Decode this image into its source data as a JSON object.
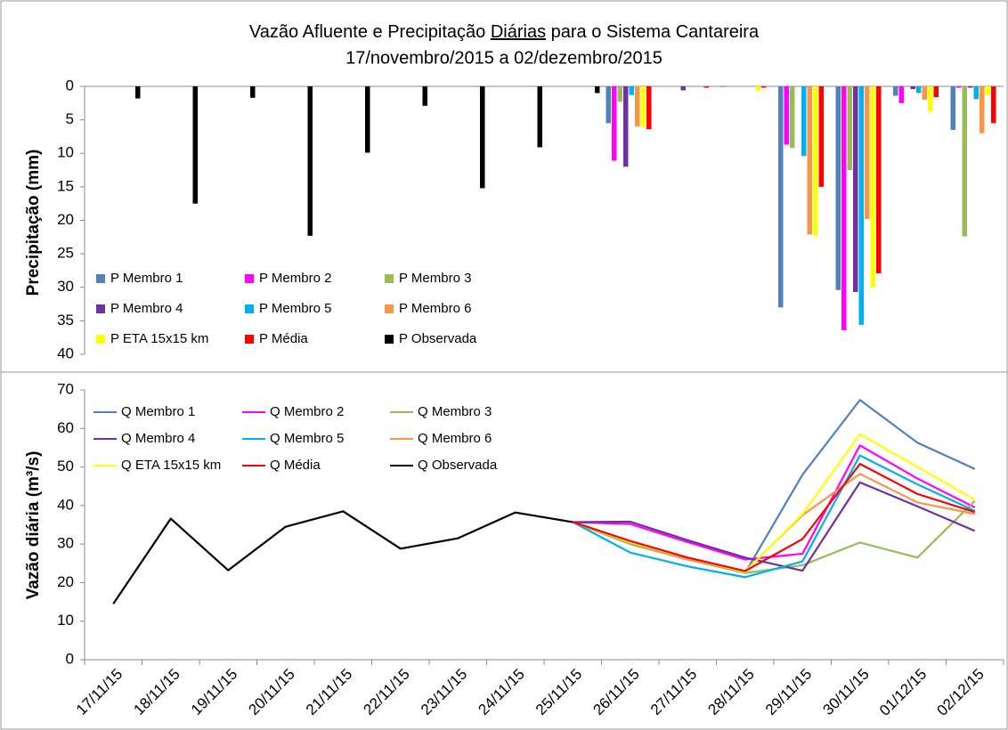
{
  "chart_data": [
    {
      "type": "bar",
      "title_parts": [
        "Vazão Afluente e Precipitação ",
        "Diárias",
        " para o Sistema Cantareira"
      ],
      "subtitle": "17/novembro/2015 a  02/dezembro/2015",
      "ylabel": "Precipitação (mm)",
      "y_inverted": true,
      "ylim": [
        0,
        40
      ],
      "yticks": [
        0,
        5,
        10,
        15,
        20,
        25,
        30,
        35,
        40
      ],
      "grid": false,
      "legend": "lower left",
      "series": [
        {
          "name": "P Membro 1",
          "color": "#4f81bd",
          "values": [
            null,
            null,
            null,
            null,
            null,
            null,
            null,
            null,
            null,
            5.5,
            0,
            0.1,
            33.0,
            30.4,
            1.4,
            6.5
          ]
        },
        {
          "name": "P Membro 2",
          "color": "#ff00ff",
          "values": [
            null,
            null,
            null,
            null,
            null,
            null,
            null,
            null,
            null,
            11.1,
            0,
            0,
            8.7,
            36.4,
            2.5,
            0.2
          ]
        },
        {
          "name": "P Membro 3",
          "color": "#9bbb59",
          "values": [
            null,
            null,
            null,
            null,
            null,
            null,
            null,
            null,
            null,
            2.3,
            0,
            0,
            9.2,
            12.5,
            0,
            22.4
          ]
        },
        {
          "name": "P Membro 4",
          "color": "#7030a0",
          "values": [
            null,
            null,
            null,
            null,
            null,
            null,
            null,
            null,
            null,
            12.0,
            0.6,
            0,
            0,
            30.7,
            0.4,
            0.2
          ]
        },
        {
          "name": "P Membro 5",
          "color": "#00b0f0",
          "values": [
            null,
            null,
            null,
            null,
            null,
            null,
            null,
            null,
            null,
            1.3,
            0,
            0,
            10.4,
            35.6,
            1.0,
            1.9
          ]
        },
        {
          "name": "P Membro 6",
          "color": "#f79646",
          "values": [
            null,
            null,
            null,
            null,
            null,
            null,
            null,
            null,
            null,
            6.0,
            0,
            0,
            22.1,
            19.8,
            2.0,
            7.0
          ]
        },
        {
          "name": "P ETA 15x15 km",
          "color": "#ffff00",
          "values": [
            null,
            null,
            null,
            null,
            null,
            null,
            null,
            null,
            null,
            6.1,
            0,
            0.7,
            22.3,
            30.0,
            3.8,
            1.3
          ]
        },
        {
          "name": "P Média",
          "color": "#ff0000",
          "values": [
            null,
            null,
            null,
            null,
            null,
            null,
            null,
            null,
            null,
            6.4,
            0.2,
            0.2,
            15.0,
            27.9,
            1.6,
            5.5
          ]
        },
        {
          "name": "P Observada",
          "color": "#000000",
          "values": [
            1.8,
            17.5,
            1.7,
            22.3,
            9.9,
            2.9,
            15.2,
            9.1,
            1.0,
            null,
            null,
            null,
            null,
            null,
            null,
            null
          ]
        }
      ]
    },
    {
      "type": "line",
      "ylabel": "Vazão diária (m³/s)",
      "categories": [
        "17/11/15",
        "18/11/15",
        "19/11/15",
        "20/11/15",
        "21/11/15",
        "22/11/15",
        "23/11/15",
        "24/11/15",
        "25/11/15",
        "26/11/15",
        "27/11/15",
        "28/11/15",
        "29/11/15",
        "30/11/15",
        "01/12/15",
        "02/12/15"
      ],
      "ylim": [
        0,
        70
      ],
      "yticks": [
        0,
        10,
        20,
        30,
        40,
        50,
        60,
        70
      ],
      "grid": false,
      "legend": "upper left",
      "series": [
        {
          "name": "Q Membro 1",
          "color": "#4f81bd",
          "values": [
            null,
            null,
            null,
            null,
            null,
            null,
            null,
            null,
            35.7,
            30.0,
            26.0,
            22.5,
            48.0,
            67.4,
            56.3,
            49.5
          ]
        },
        {
          "name": "Q Membro 2",
          "color": "#ff00ff",
          "values": [
            null,
            null,
            null,
            null,
            null,
            null,
            null,
            null,
            35.7,
            35.2,
            30.5,
            26.0,
            27.5,
            55.6,
            47.0,
            39.5
          ]
        },
        {
          "name": "Q Membro 3",
          "color": "#9bbb59",
          "values": [
            null,
            null,
            null,
            null,
            null,
            null,
            null,
            null,
            35.7,
            30.0,
            26.0,
            22.5,
            24.5,
            30.4,
            26.5,
            41.2
          ]
        },
        {
          "name": "Q Membro 4",
          "color": "#7030a0",
          "values": [
            null,
            null,
            null,
            null,
            null,
            null,
            null,
            null,
            35.7,
            35.8,
            31.0,
            26.5,
            23.1,
            46.0,
            39.8,
            33.4
          ]
        },
        {
          "name": "Q Membro 5",
          "color": "#00b0f0",
          "values": [
            null,
            null,
            null,
            null,
            null,
            null,
            null,
            null,
            35.7,
            27.8,
            24.2,
            21.4,
            25.5,
            53.0,
            45.5,
            38.6
          ]
        },
        {
          "name": "Q Membro 6",
          "color": "#f79646",
          "values": [
            null,
            null,
            null,
            null,
            null,
            null,
            null,
            null,
            35.7,
            30.5,
            26.0,
            23.0,
            37.5,
            48.2,
            40.8,
            37.8
          ]
        },
        {
          "name": "Q ETA 15x15 km",
          "color": "#ffff00",
          "values": [
            null,
            null,
            null,
            null,
            null,
            null,
            null,
            null,
            35.7,
            30.5,
            26.5,
            22.8,
            37.8,
            58.5,
            50.0,
            41.5
          ]
        },
        {
          "name": "Q Média",
          "color": "#ff0000",
          "values": [
            null,
            null,
            null,
            null,
            null,
            null,
            null,
            null,
            35.7,
            30.8,
            26.5,
            23.0,
            31.3,
            50.8,
            43.0,
            38.3
          ]
        },
        {
          "name": "Q Observada",
          "color": "#000000",
          "values": [
            14.5,
            36.6,
            23.2,
            34.5,
            38.5,
            28.8,
            31.5,
            38.2,
            35.7,
            null,
            null,
            null,
            null,
            null,
            null,
            null
          ]
        }
      ]
    }
  ]
}
